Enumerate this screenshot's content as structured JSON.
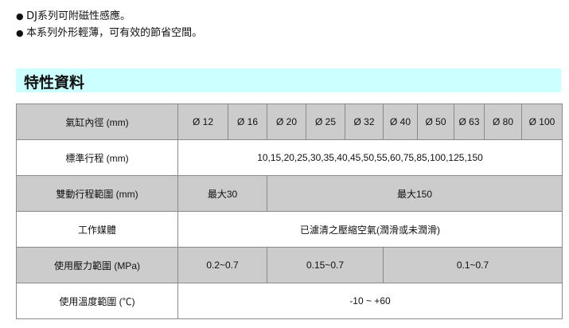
{
  "bullets": [
    "DJ系列可附磁性感應。",
    "本系列外形輕薄，可有效的節省空間。"
  ],
  "section_title": "特性資料",
  "table": {
    "bore_label": "氣缸內徑 (mm)",
    "bores": [
      "Ø 12",
      "Ø 16",
      "Ø 20",
      "Ø 25",
      "Ø 32",
      "Ø 40",
      "Ø 50",
      "Ø 63",
      "Ø 80",
      "Ø 100"
    ],
    "stroke_label": "標準行程 (mm)",
    "stroke_value": "10,15,20,25,30,35,40,45,50,55,60,75,85,100,125,150",
    "double_label": "雙動行程範圍 (mm)",
    "double_values": [
      "最大30",
      "最大150"
    ],
    "medium_label": "工作媒體",
    "medium_value": "已濾清之壓縮空氣(潤滑或未潤滑)",
    "pressure_label": "使用壓力範圍 (MPa)",
    "pressure_values": [
      "0.2~0.7",
      "0.15~0.7",
      "0.1~0.7"
    ],
    "temp_label": "使用溫度範圍 (℃)",
    "temp_value": "-10 ~ +60"
  },
  "colors": {
    "heading_bg": "#ccffff",
    "row_grey": "#cccccc",
    "border": "#8a8a8a"
  }
}
